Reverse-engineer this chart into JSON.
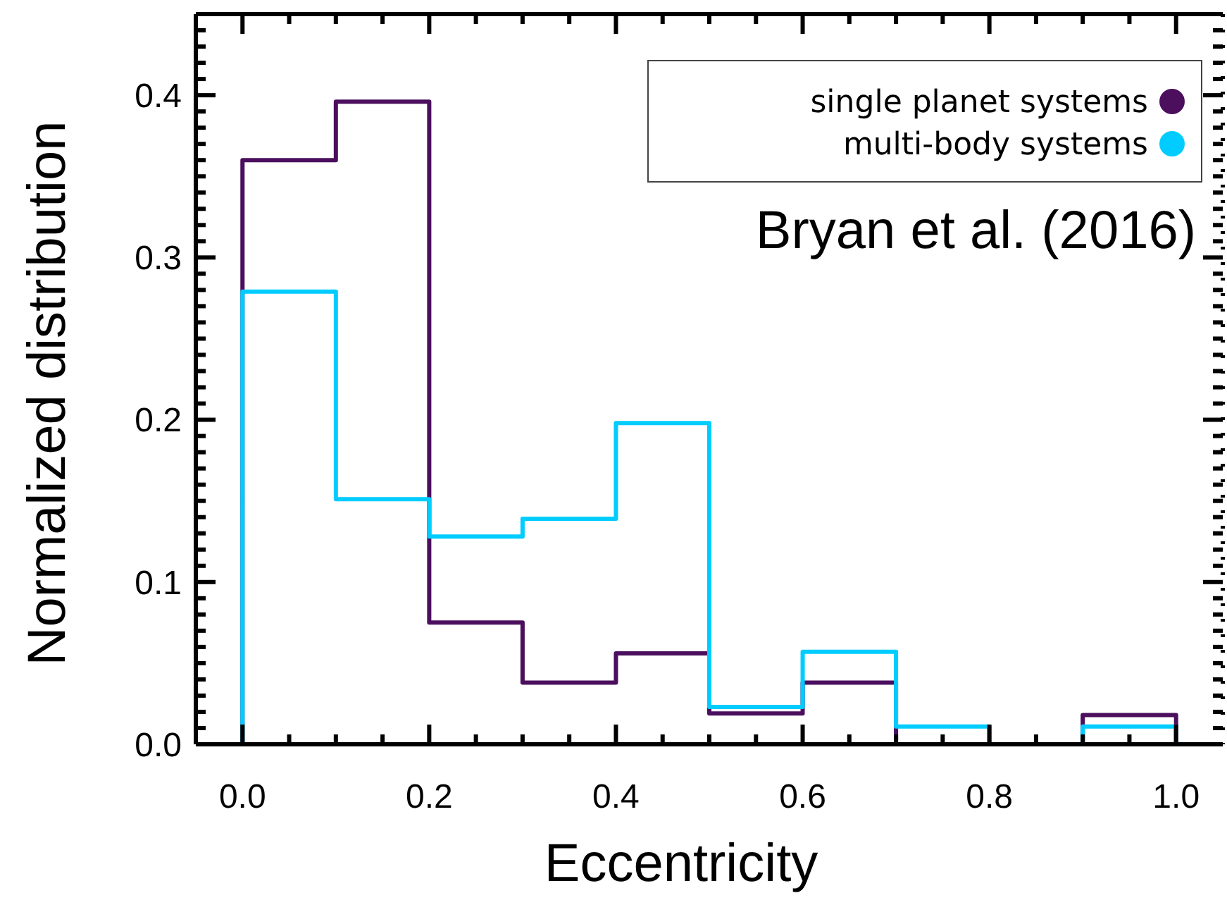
{
  "chart_data": {
    "type": "histogram",
    "xlabel": "Eccentricity",
    "ylabel": "Normalized distribution",
    "bins": [
      0,
      0.1,
      0.2,
      0.3,
      0.4,
      0.5,
      0.6,
      0.7,
      0.8,
      0.9,
      1.0
    ],
    "series": [
      {
        "name": "single planet systems",
        "color": "#4b0f5e",
        "values": [
          0.36,
          0.396,
          0.075,
          0.038,
          0.056,
          0.019,
          0.038,
          0,
          0,
          0.018
        ]
      },
      {
        "name": "multi-body systems",
        "color": "#00ccff",
        "values": [
          0.279,
          0.151,
          0.128,
          0.139,
          0.198,
          0.023,
          0.057,
          0.011,
          0,
          0.011
        ]
      }
    ],
    "xlim": [
      -0.05,
      1.05
    ],
    "ylim": [
      0,
      0.45
    ],
    "xticks": [
      {
        "value": -0.05,
        "label": null
      },
      {
        "value": 0,
        "label": "0.0"
      },
      {
        "value": 0.05,
        "label": null
      },
      {
        "value": 0.1,
        "label": null
      },
      {
        "value": 0.15,
        "label": null
      },
      0.2,
      {
        "value": 0.25,
        "label": null
      },
      {
        "value": 0.3,
        "label": null
      },
      {
        "value": 0.35,
        "label": null
      },
      0.4,
      {
        "value": 0.45,
        "label": null
      },
      {
        "value": 0.5,
        "label": null
      },
      {
        "value": 0.55,
        "label": null
      },
      0.6,
      {
        "value": 0.65,
        "label": null
      },
      {
        "value": 0.7,
        "label": null
      },
      {
        "value": 0.75,
        "label": null
      },
      0.8,
      {
        "value": 0.85,
        "label": null
      },
      {
        "value": 0.9,
        "label": null
      },
      {
        "value": 0.95,
        "label": null
      },
      {
        "value": 1,
        "label": "1.0"
      }
    ],
    "yticks": [
      {
        "value": 0,
        "label": "0.0"
      },
      {
        "value": 0.01,
        "label": null
      },
      {
        "value": 0.02,
        "label": null
      },
      {
        "value": 0.03,
        "label": null
      },
      {
        "value": 0.04,
        "label": null
      },
      {
        "value": 0.05,
        "label": null
      },
      {
        "value": 0.06,
        "label": null
      },
      {
        "value": 0.07,
        "label": null
      },
      {
        "value": 0.08,
        "label": null
      },
      {
        "value": 0.09,
        "label": null
      },
      0.1,
      {
        "value": 0.11,
        "label": null
      },
      {
        "value": 0.12,
        "label": null
      },
      {
        "value": 0.13,
        "label": null
      },
      {
        "value": 0.14,
        "label": null
      },
      {
        "value": 0.15,
        "label": null
      },
      {
        "value": 0.16,
        "label": null
      },
      {
        "value": 0.17,
        "label": null
      },
      {
        "value": 0.18,
        "label": null
      },
      {
        "value": 0.19,
        "label": null
      },
      0.2,
      {
        "value": 0.21,
        "label": null
      },
      {
        "value": 0.22,
        "label": null
      },
      {
        "value": 0.23,
        "label": null
      },
      {
        "value": 0.24,
        "label": null
      },
      {
        "value": 0.25,
        "label": null
      },
      {
        "value": 0.26,
        "label": null
      },
      {
        "value": 0.27,
        "label": null
      },
      {
        "value": 0.28,
        "label": null
      },
      {
        "value": 0.29,
        "label": null
      },
      0.3,
      {
        "value": 0.31,
        "label": null
      },
      {
        "value": 0.32,
        "label": null
      },
      {
        "value": 0.33,
        "label": null
      },
      {
        "value": 0.34,
        "label": null
      },
      {
        "value": 0.35,
        "label": null
      },
      {
        "value": 0.36,
        "label": null
      },
      {
        "value": 0.37,
        "label": null
      },
      {
        "value": 0.38,
        "label": null
      },
      {
        "value": 0.39,
        "label": null
      },
      0.4,
      {
        "value": 0.41,
        "label": null
      },
      {
        "value": 0.42,
        "label": null
      },
      {
        "value": 0.43,
        "label": null
      },
      {
        "value": 0.44,
        "label": null
      }
    ],
    "legend": "top right",
    "marker": "circle",
    "grid": false,
    "annotations": [
      "Bryan et al. (2016)"
    ]
  }
}
